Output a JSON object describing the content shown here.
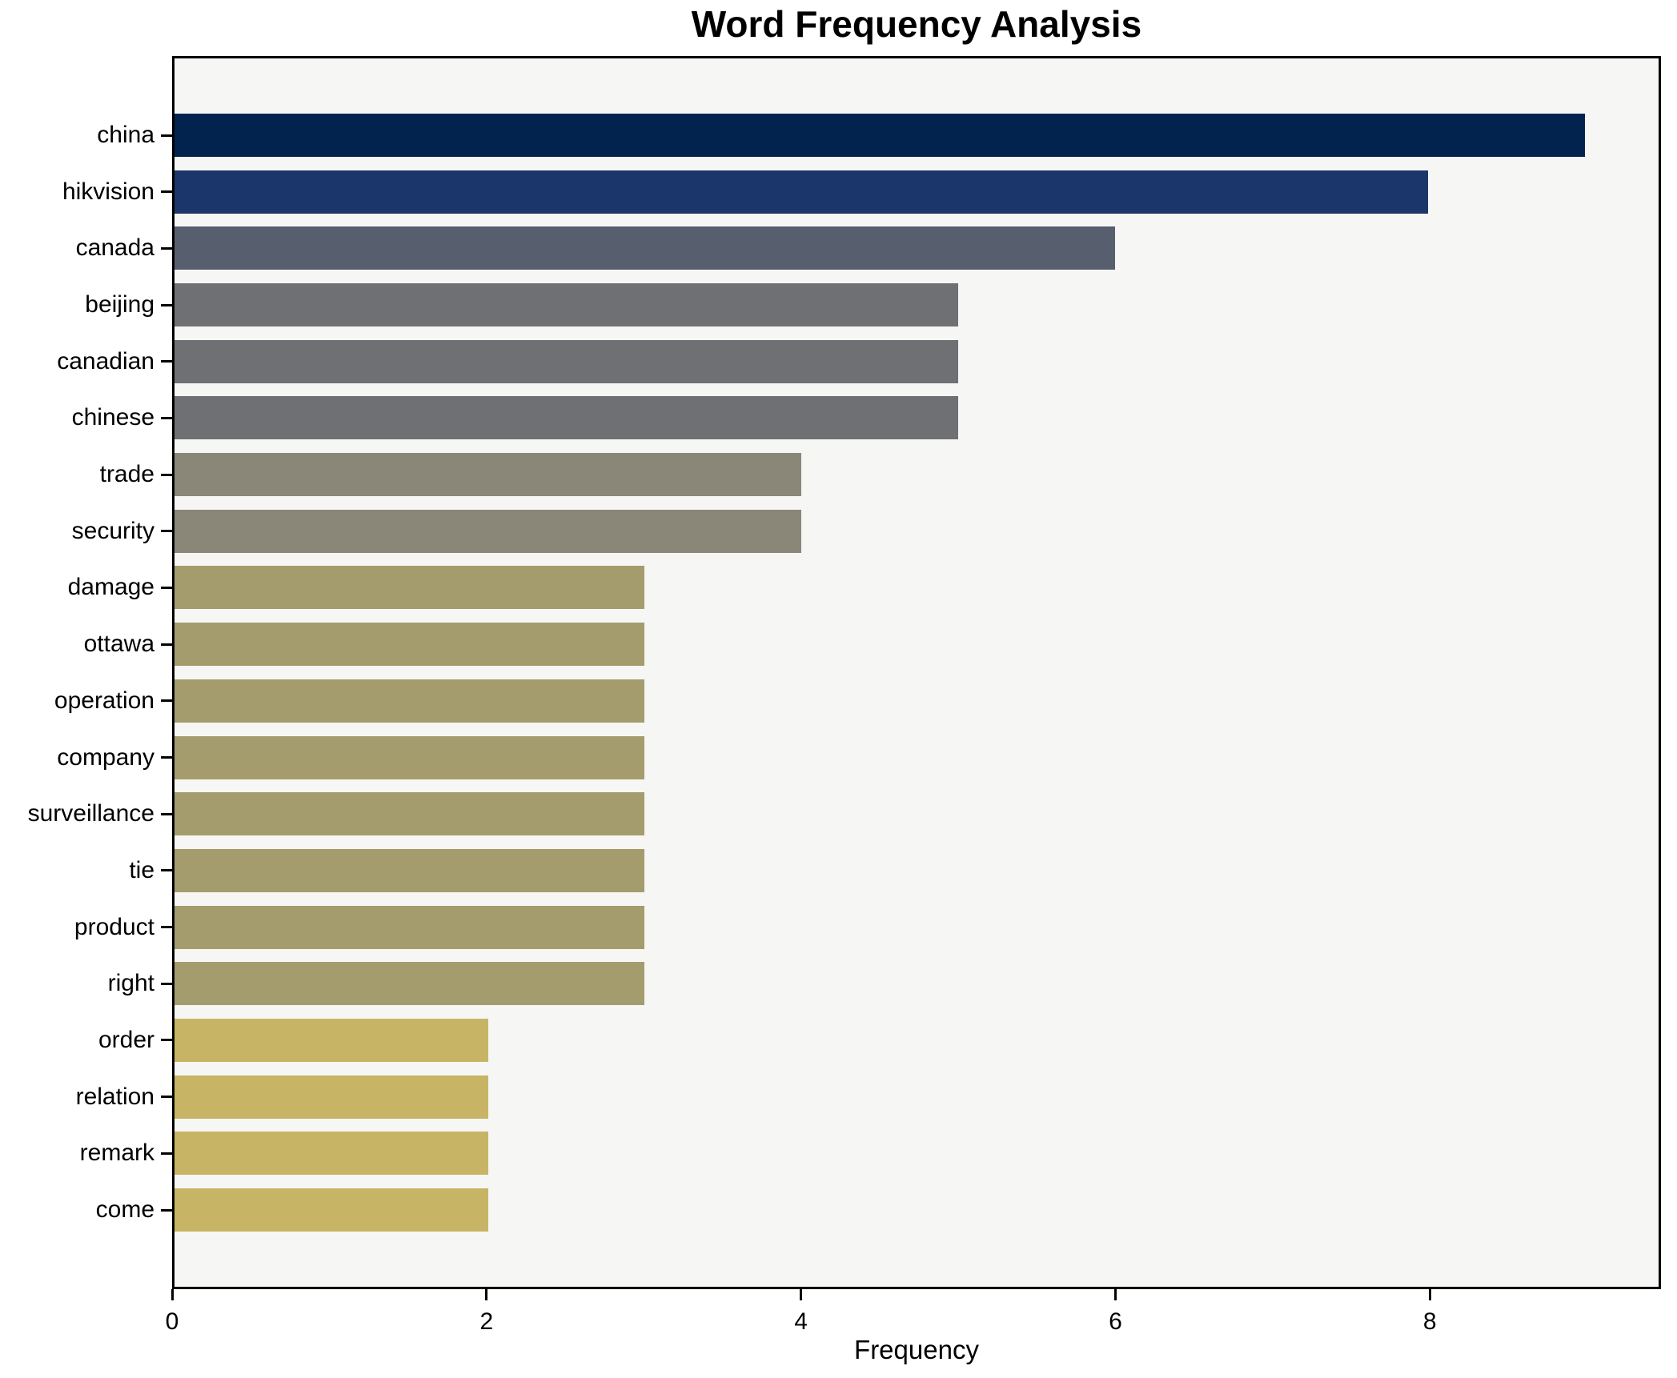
{
  "chart_data": {
    "type": "bar",
    "orientation": "horizontal",
    "title": "Word Frequency Analysis",
    "xlabel": "Frequency",
    "ylabel": "",
    "categories": [
      "china",
      "hikvision",
      "canada",
      "beijing",
      "canadian",
      "chinese",
      "trade",
      "security",
      "damage",
      "ottawa",
      "operation",
      "company",
      "surveillance",
      "tie",
      "product",
      "right",
      "order",
      "relation",
      "remark",
      "come"
    ],
    "values": [
      9,
      8,
      6,
      5,
      5,
      5,
      4,
      4,
      3,
      3,
      3,
      3,
      3,
      3,
      3,
      3,
      2,
      2,
      2,
      2
    ],
    "bar_colors": [
      "#02234e",
      "#1a366b",
      "#575e6d",
      "#6f7073",
      "#6f7073",
      "#6f7073",
      "#8a8779",
      "#8a8779",
      "#a49c6d",
      "#a49c6d",
      "#a49c6d",
      "#a49c6d",
      "#a49c6d",
      "#a49c6d",
      "#a49c6d",
      "#a49c6d",
      "#c7b565",
      "#c7b565",
      "#c7b565",
      "#c7b565"
    ],
    "xticks": [
      0,
      2,
      4,
      6,
      8
    ],
    "xlim": [
      0,
      9.47
    ],
    "grid": false,
    "legend_position": "none",
    "plot_background": "#f6f6f5",
    "figure_background": "#ffffff",
    "spine_color": "#000000",
    "text_color": "#000000"
  }
}
